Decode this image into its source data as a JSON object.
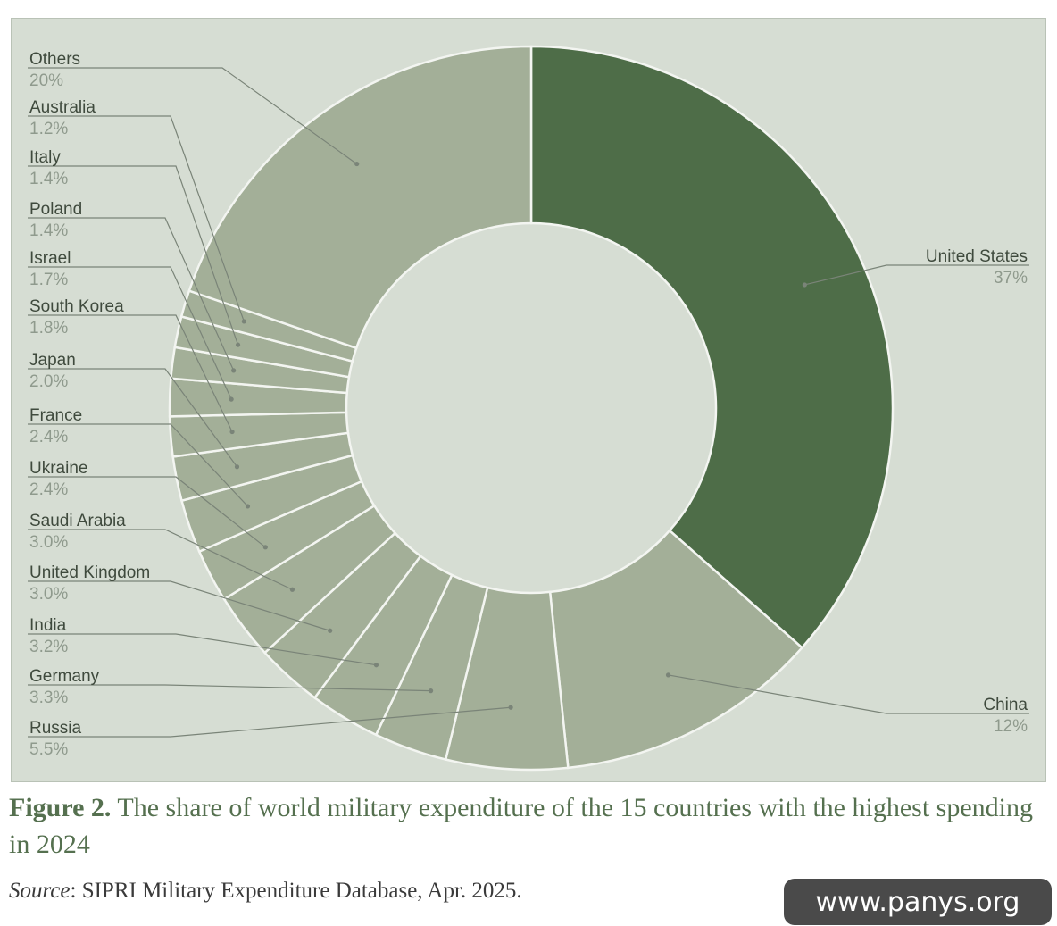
{
  "chart_data": {
    "type": "pie",
    "donut": true,
    "title": "",
    "series": [
      {
        "name": "United States",
        "value_label": "37%",
        "value": 37
      },
      {
        "name": "China",
        "value_label": "12%",
        "value": 12
      },
      {
        "name": "Russia",
        "value_label": "5.5%",
        "value": 5.5
      },
      {
        "name": "Germany",
        "value_label": "3.3%",
        "value": 3.3
      },
      {
        "name": "India",
        "value_label": "3.2%",
        "value": 3.2
      },
      {
        "name": "United Kingdom",
        "value_label": "3.0%",
        "value": 3.0
      },
      {
        "name": "Saudi Arabia",
        "value_label": "3.0%",
        "value": 3.0
      },
      {
        "name": "Ukraine",
        "value_label": "2.4%",
        "value": 2.4
      },
      {
        "name": "France",
        "value_label": "2.4%",
        "value": 2.4
      },
      {
        "name": "Japan",
        "value_label": "2.0%",
        "value": 2.0
      },
      {
        "name": "South Korea",
        "value_label": "1.8%",
        "value": 1.8
      },
      {
        "name": "Israel",
        "value_label": "1.7%",
        "value": 1.7
      },
      {
        "name": "Poland",
        "value_label": "1.4%",
        "value": 1.4
      },
      {
        "name": "Italy",
        "value_label": "1.4%",
        "value": 1.4
      },
      {
        "name": "Australia",
        "value_label": "1.2%",
        "value": 1.2
      },
      {
        "name": "Others",
        "value_label": "20%",
        "value": 20
      }
    ],
    "colors": {
      "highlight": "#4e6d48",
      "slice": "#a3af98",
      "background": "#d6ddd3",
      "separator": "#f3f5f1",
      "leader": "#7a8478"
    }
  },
  "caption": {
    "figure_label": "Figure 2.",
    "text": "The share of world military expenditure of the 15 countries with the highest spending in 2024"
  },
  "source": {
    "label": "Source",
    "text": ": SIPRI Military Expenditure Database, Apr. 2025."
  },
  "watermark": "www.panys.org"
}
